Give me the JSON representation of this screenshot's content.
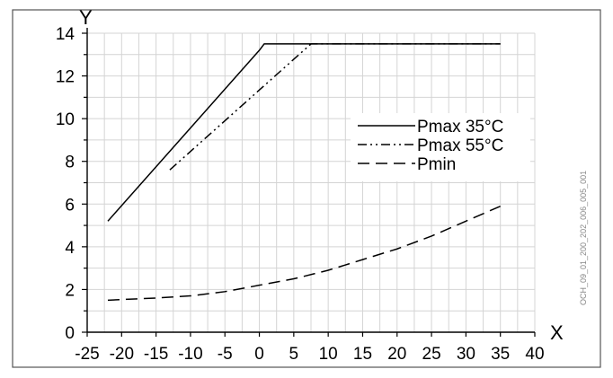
{
  "chart_data": {
    "type": "line",
    "title": "",
    "xlabel": "X",
    "ylabel": "Y",
    "xlim": [
      -25,
      40
    ],
    "ylim": [
      0,
      14
    ],
    "x_ticks": [
      -25,
      -20,
      -15,
      -10,
      -5,
      0,
      5,
      10,
      15,
      20,
      25,
      30,
      35,
      40
    ],
    "y_ticks": [
      0,
      2,
      4,
      6,
      8,
      10,
      12,
      14
    ],
    "grid": true,
    "legend_position": "right",
    "series": [
      {
        "name": "Pmax 35°C",
        "dash": "solid",
        "x": [
          -22,
          0,
          0.7,
          1,
          35
        ],
        "y": [
          5.2,
          13.2,
          13.5,
          13.5,
          13.5
        ]
      },
      {
        "name": "Pmax 55°C",
        "dash": "dash-dot-dot",
        "x": [
          -13,
          7.5,
          35
        ],
        "y": [
          7.6,
          13.5,
          13.5
        ]
      },
      {
        "name": "Pmin",
        "dash": "dashed",
        "x": [
          -22,
          -15,
          -10,
          -5,
          0,
          5,
          10,
          15,
          20,
          25,
          30,
          35
        ],
        "y": [
          1.5,
          1.6,
          1.7,
          1.9,
          2.2,
          2.5,
          2.9,
          3.4,
          3.9,
          4.5,
          5.2,
          5.9
        ]
      }
    ],
    "side_code": "OCH_09_01_200_202_006_005_001"
  }
}
